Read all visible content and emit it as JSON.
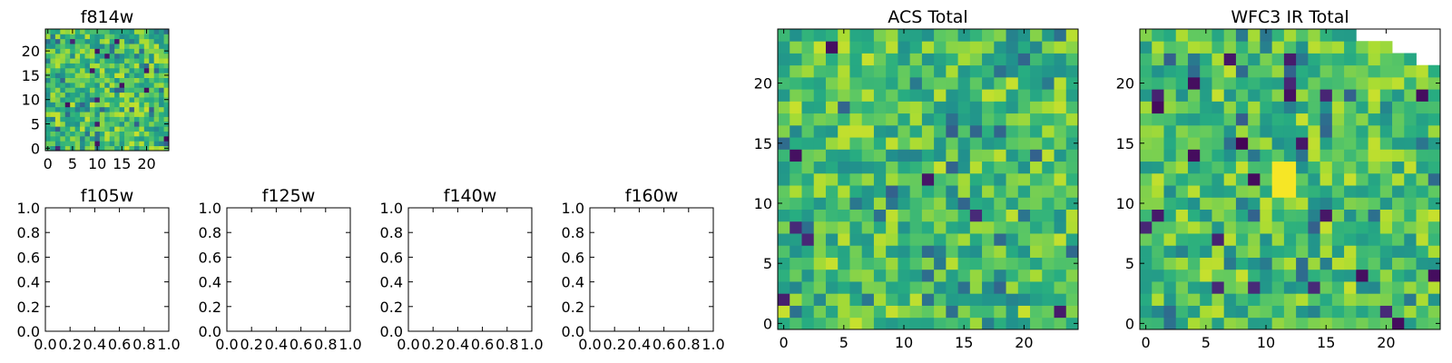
{
  "chart_data": [
    {
      "type": "heatmap",
      "title": "f814w",
      "xlim": [
        -0.5,
        24.5
      ],
      "ylim": [
        -0.5,
        24.5
      ],
      "xticks": [
        0,
        5,
        10,
        15,
        20
      ],
      "yticks": [
        0,
        5,
        10,
        15,
        20
      ],
      "tick_labels_x": [
        "0",
        "5",
        "10",
        "15",
        "20"
      ],
      "tick_labels_y": [
        "0",
        "5",
        "10",
        "15",
        "20"
      ],
      "colormap": "viridis",
      "seed": 814,
      "dark_fraction": 0.03,
      "grid": false
    },
    {
      "type": "empty",
      "title": "f105w",
      "xlim": [
        0,
        1
      ],
      "ylim": [
        0,
        1
      ],
      "tick_labels_x": [
        "0.0",
        "0.2",
        "0.4",
        "0.6",
        "0.8",
        "1.0"
      ],
      "tick_labels_y": [
        "0.0",
        "0.2",
        "0.4",
        "0.6",
        "0.8",
        "1.0"
      ]
    },
    {
      "type": "empty",
      "title": "f125w",
      "xlim": [
        0,
        1
      ],
      "ylim": [
        0,
        1
      ],
      "tick_labels_x": [
        "0.0",
        "0.2",
        "0.4",
        "0.6",
        "0.8",
        "1.0"
      ],
      "tick_labels_y": [
        "0.0",
        "0.2",
        "0.4",
        "0.6",
        "0.8",
        "1.0"
      ]
    },
    {
      "type": "empty",
      "title": "f140w",
      "xlim": [
        0,
        1
      ],
      "ylim": [
        0,
        1
      ],
      "tick_labels_x": [
        "0.0",
        "0.2",
        "0.4",
        "0.6",
        "0.8",
        "1.0"
      ],
      "tick_labels_y": [
        "0.0",
        "0.2",
        "0.4",
        "0.6",
        "0.8",
        "1.0"
      ]
    },
    {
      "type": "empty",
      "title": "f160w",
      "xlim": [
        0,
        1
      ],
      "ylim": [
        0,
        1
      ],
      "tick_labels_x": [
        "0.0",
        "0.2",
        "0.4",
        "0.6",
        "0.8",
        "1.0"
      ],
      "tick_labels_y": [
        "0.0",
        "0.2",
        "0.4",
        "0.6",
        "0.8",
        "1.0"
      ]
    },
    {
      "type": "heatmap",
      "title": "ACS Total",
      "xlim": [
        -0.5,
        24.5
      ],
      "ylim": [
        -0.5,
        24.5
      ],
      "xticks": [
        0,
        5,
        10,
        15,
        20
      ],
      "yticks": [
        0,
        5,
        10,
        15,
        20
      ],
      "tick_labels_x": [
        "0",
        "5",
        "10",
        "15",
        "20"
      ],
      "tick_labels_y": [
        "0",
        "5",
        "10",
        "15",
        "20"
      ],
      "colormap": "viridis",
      "seed": 4242,
      "dark_fraction": 0.025,
      "grid": false
    },
    {
      "type": "heatmap",
      "title": "WFC3 IR Total",
      "xlim": [
        -0.5,
        24.5
      ],
      "ylim": [
        -0.5,
        24.5
      ],
      "xticks": [
        0,
        5,
        10,
        15,
        20
      ],
      "yticks": [
        0,
        5,
        10,
        15,
        20
      ],
      "tick_labels_x": [
        "0",
        "5",
        "10",
        "15",
        "20"
      ],
      "tick_labels_y": [
        "0",
        "5",
        "10",
        "15",
        "20"
      ],
      "colormap": "viridis",
      "seed": 9001,
      "dark_fraction": 0.035,
      "bright_patch": {
        "x": [
          11,
          12
        ],
        "y": [
          11,
          13
        ]
      },
      "missing_cells": [
        {
          "y": 24,
          "x": [
            18,
            24
          ]
        },
        {
          "y": 23,
          "x": [
            21,
            24
          ]
        },
        {
          "y": 22,
          "x": [
            23,
            24
          ]
        }
      ],
      "grid": false
    }
  ]
}
